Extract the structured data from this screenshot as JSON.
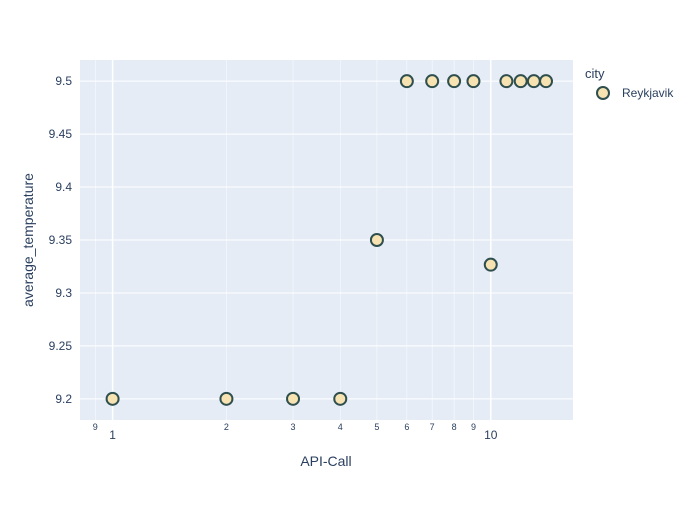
{
  "chart_data": {
    "type": "scatter",
    "x_scale": "log",
    "xlabel": "API-Call",
    "ylabel": "average_temperature",
    "ylim": [
      9.18,
      9.52
    ],
    "xlim": [
      0.82,
      16.5
    ],
    "y_ticks": [
      9.2,
      9.25,
      9.3,
      9.35,
      9.4,
      9.45,
      9.5
    ],
    "x_major_ticks": [
      {
        "value": 1,
        "label": "1"
      },
      {
        "value": 10,
        "label": "10"
      }
    ],
    "x_minor_ticks": [
      {
        "value": 0.9,
        "label": "9"
      },
      {
        "value": 2,
        "label": "2"
      },
      {
        "value": 3,
        "label": "3"
      },
      {
        "value": 4,
        "label": "4"
      },
      {
        "value": 5,
        "label": "5"
      },
      {
        "value": 6,
        "label": "6"
      },
      {
        "value": 7,
        "label": "7"
      },
      {
        "value": 8,
        "label": "8"
      },
      {
        "value": 9,
        "label": "9"
      }
    ],
    "legend": {
      "title": "city",
      "position": "top-right"
    },
    "series": [
      {
        "name": "Reykjavik",
        "color": "#f6e3b1",
        "edge_color": "#2f4f4f",
        "x": [
          1,
          2,
          3,
          4,
          5,
          6,
          7,
          8,
          9,
          10,
          11,
          12,
          13,
          14
        ],
        "y": [
          9.2,
          9.2,
          9.2,
          9.2,
          9.35,
          9.5,
          9.5,
          9.5,
          9.5,
          9.3267,
          9.5,
          9.5,
          9.5,
          9.5
        ]
      }
    ],
    "plot_bg": "#e5ecf6",
    "grid_color": "#ffffff",
    "text_color": "#2a3f5f"
  }
}
